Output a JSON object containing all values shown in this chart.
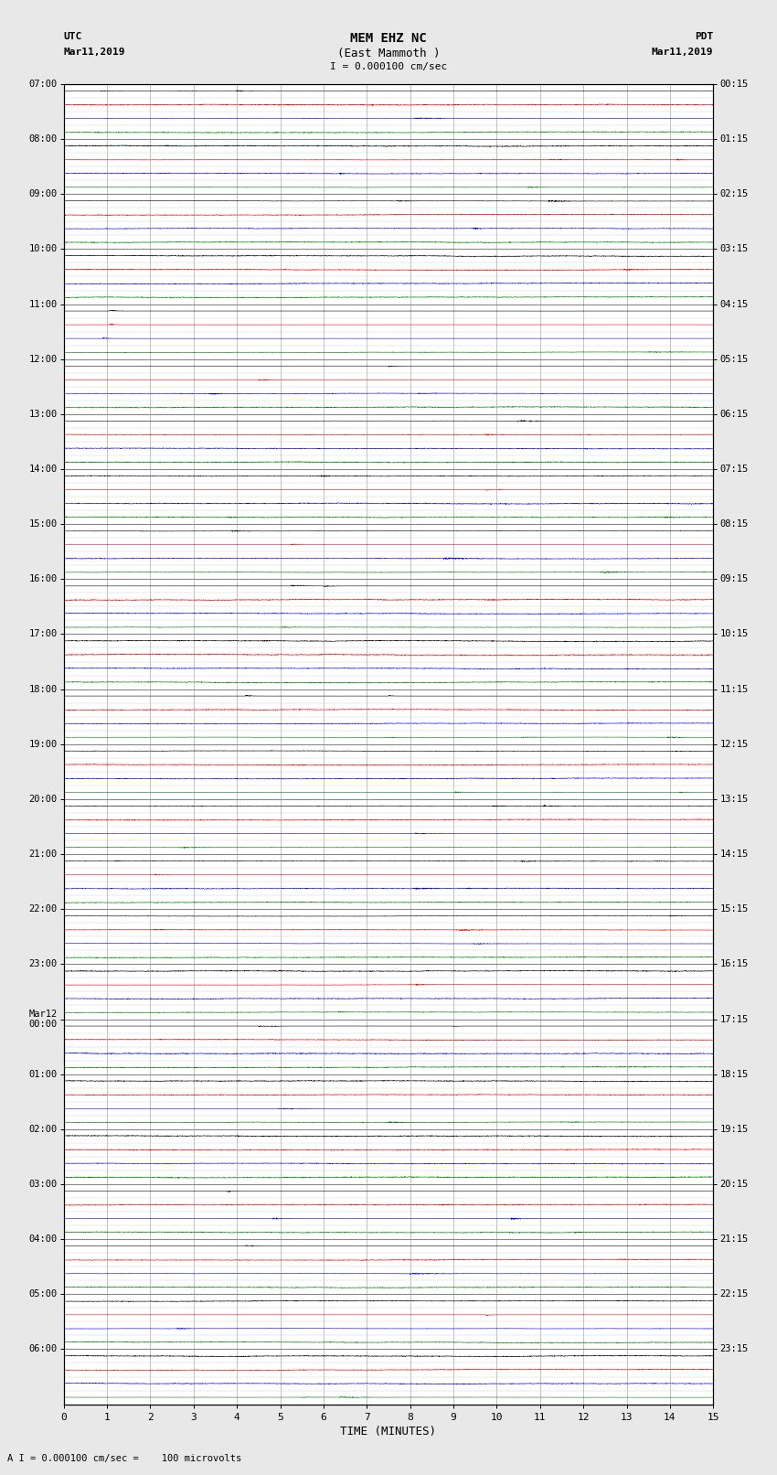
{
  "title_line1": "MEM EHZ NC",
  "title_line2": "(East Mammoth )",
  "scale_text": "I = 0.000100 cm/sec",
  "utc_label": "UTC",
  "utc_date": "Mar11,2019",
  "pdt_label": "PDT",
  "pdt_date": "Mar11,2019",
  "xlabel": "TIME (MINUTES)",
  "bottom_note": "A I = 0.000100 cm/sec =    100 microvolts",
  "left_labels": [
    "07:00",
    "08:00",
    "09:00",
    "10:00",
    "11:00",
    "12:00",
    "13:00",
    "14:00",
    "15:00",
    "16:00",
    "17:00",
    "18:00",
    "19:00",
    "20:00",
    "21:00",
    "22:00",
    "23:00",
    "Mar12\n00:00",
    "01:00",
    "02:00",
    "03:00",
    "04:00",
    "05:00",
    "06:00"
  ],
  "right_labels": [
    "00:15",
    "01:15",
    "02:15",
    "03:15",
    "04:15",
    "05:15",
    "06:15",
    "07:15",
    "08:15",
    "09:15",
    "10:15",
    "11:15",
    "12:15",
    "13:15",
    "14:15",
    "15:15",
    "16:15",
    "17:15",
    "18:15",
    "19:15",
    "20:15",
    "21:15",
    "22:15",
    "23:15"
  ],
  "n_hours": 24,
  "traces_per_hour": 4,
  "trace_colors": [
    "black",
    "red",
    "blue",
    "green"
  ],
  "x_ticks": [
    0,
    1,
    2,
    3,
    4,
    5,
    6,
    7,
    8,
    9,
    10,
    11,
    12,
    13,
    14,
    15
  ],
  "xlim": [
    0,
    15
  ],
  "bg_color": "#e8e8e8",
  "plot_bg": "#ffffff",
  "seed": 12345,
  "n_pts": 3000,
  "base_amplitude": 0.12,
  "noise_scale": 0.015
}
